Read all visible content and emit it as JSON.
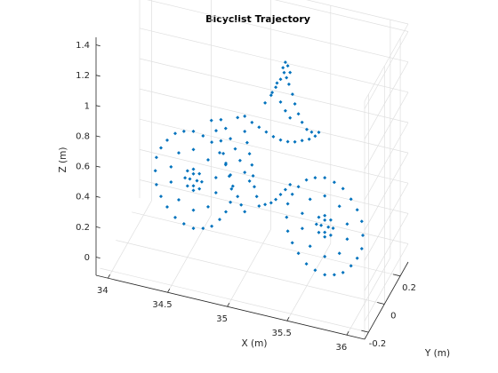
{
  "chart_data": {
    "type": "scatter",
    "title": "Bicyclist Trajectory",
    "xlabel": "X (m)",
    "ylabel": "Y (m)",
    "zlabel": "Z (m)",
    "xlim": [
      33.9,
      36.15
    ],
    "ylim": [
      -0.25,
      0.3
    ],
    "zlim": [
      -0.12,
      1.45
    ],
    "xticks": [
      "34",
      "34.5",
      "35",
      "35.5",
      "36"
    ],
    "yticks": [
      "-0.2",
      "0",
      "0.2"
    ],
    "zticks": [
      "0",
      "0.2",
      "0.4",
      "0.6",
      "0.8",
      "1",
      "1.2",
      "1.4"
    ],
    "grid": true,
    "marker_color": "#0072BD",
    "series": [
      {
        "points": [
          [
            34.55,
            0,
            0.72
          ],
          [
            34.703,
            0,
            0.677
          ],
          [
            34.822,
            0,
            0.56
          ],
          [
            34.869,
            0,
            0.4
          ],
          [
            34.822,
            0,
            0.24
          ],
          [
            34.703,
            0,
            0.123
          ],
          [
            34.55,
            0,
            0.08
          ],
          [
            34.397,
            0,
            0.123
          ],
          [
            34.278,
            0,
            0.24
          ],
          [
            34.231,
            0,
            0.4
          ],
          [
            34.278,
            0,
            0.56
          ],
          [
            34.397,
            0,
            0.677
          ],
          [
            34.63,
            0,
            0.705
          ],
          [
            34.77,
            0,
            0.62
          ],
          [
            34.86,
            0,
            0.49
          ],
          [
            34.86,
            0,
            0.31
          ],
          [
            34.77,
            0,
            0.18
          ],
          [
            34.63,
            0,
            0.095
          ],
          [
            34.47,
            0,
            0.095
          ],
          [
            34.33,
            0,
            0.18
          ],
          [
            34.24,
            0,
            0.31
          ],
          [
            34.24,
            0,
            0.49
          ],
          [
            34.33,
            0,
            0.62
          ],
          [
            34.47,
            0,
            0.705
          ],
          [
            34.55,
            0,
            0.6
          ],
          [
            34.673,
            0,
            0.555
          ],
          [
            34.738,
            0,
            0.45
          ],
          [
            34.738,
            0,
            0.35
          ],
          [
            34.673,
            0,
            0.245
          ],
          [
            34.55,
            0,
            0.2
          ],
          [
            34.427,
            0,
            0.245
          ],
          [
            34.362,
            0,
            0.35
          ],
          [
            34.362,
            0,
            0.45
          ],
          [
            34.427,
            0,
            0.555
          ],
          [
            34.55,
            0,
            0.47
          ],
          [
            34.6,
            0,
            0.45
          ],
          [
            34.62,
            0,
            0.4
          ],
          [
            34.6,
            0,
            0.35
          ],
          [
            34.55,
            0,
            0.33
          ],
          [
            34.5,
            0,
            0.35
          ],
          [
            34.48,
            0,
            0.4
          ],
          [
            34.5,
            0,
            0.45
          ],
          [
            34.55,
            0,
            0.44
          ],
          [
            34.58,
            0,
            0.4
          ],
          [
            34.55,
            0,
            0.36
          ],
          [
            34.52,
            0,
            0.4
          ],
          [
            35.65,
            0,
            0.62
          ],
          [
            35.803,
            0,
            0.577
          ],
          [
            35.922,
            0,
            0.46
          ],
          [
            35.969,
            0,
            0.3
          ],
          [
            35.922,
            0,
            0.14
          ],
          [
            35.803,
            0,
            0.023
          ],
          [
            35.65,
            0,
            -0.02
          ],
          [
            35.497,
            0,
            0.023
          ],
          [
            35.378,
            0,
            0.14
          ],
          [
            35.331,
            0,
            0.3
          ],
          [
            35.378,
            0,
            0.46
          ],
          [
            35.497,
            0,
            0.577
          ],
          [
            35.73,
            0,
            0.605
          ],
          [
            35.87,
            0,
            0.52
          ],
          [
            35.96,
            0,
            0.39
          ],
          [
            35.96,
            0,
            0.21
          ],
          [
            35.87,
            0,
            0.08
          ],
          [
            35.73,
            0,
            -0.005
          ],
          [
            35.57,
            0,
            -0.005
          ],
          [
            35.43,
            0,
            0.08
          ],
          [
            35.34,
            0,
            0.21
          ],
          [
            35.34,
            0,
            0.39
          ],
          [
            35.43,
            0,
            0.52
          ],
          [
            35.57,
            0,
            0.605
          ],
          [
            35.65,
            0,
            0.5
          ],
          [
            35.773,
            0,
            0.455
          ],
          [
            35.838,
            0,
            0.35
          ],
          [
            35.838,
            0,
            0.25
          ],
          [
            35.773,
            0,
            0.145
          ],
          [
            35.65,
            0,
            0.1
          ],
          [
            35.527,
            0,
            0.145
          ],
          [
            35.462,
            0,
            0.25
          ],
          [
            35.462,
            0,
            0.35
          ],
          [
            35.527,
            0,
            0.455
          ],
          [
            35.65,
            0,
            0.37
          ],
          [
            35.7,
            0,
            0.35
          ],
          [
            35.72,
            0,
            0.3
          ],
          [
            35.7,
            0,
            0.25
          ],
          [
            35.65,
            0,
            0.23
          ],
          [
            35.6,
            0,
            0.25
          ],
          [
            35.58,
            0,
            0.3
          ],
          [
            35.6,
            0,
            0.35
          ],
          [
            35.65,
            0,
            0.34
          ],
          [
            35.68,
            0,
            0.3
          ],
          [
            35.65,
            0,
            0.26
          ],
          [
            35.62,
            0,
            0.3
          ],
          [
            34.7,
            0,
            0.82
          ],
          [
            34.74,
            0,
            0.76
          ],
          [
            34.78,
            0,
            0.7
          ],
          [
            34.8,
            0,
            0.62
          ],
          [
            34.82,
            0,
            0.55
          ],
          [
            34.85,
            0,
            0.48
          ],
          [
            34.88,
            0,
            0.42
          ],
          [
            34.92,
            0,
            0.36
          ],
          [
            34.95,
            0,
            0.31
          ],
          [
            34.98,
            0,
            0.27
          ],
          [
            34.78,
            0,
            0.84
          ],
          [
            34.82,
            0,
            0.79
          ],
          [
            34.86,
            0,
            0.73
          ],
          [
            34.9,
            0,
            0.67
          ],
          [
            34.94,
            0,
            0.6
          ],
          [
            34.98,
            0,
            0.53
          ],
          [
            35.02,
            0,
            0.48
          ],
          [
            34.98,
            0,
            0.8
          ],
          [
            35.0,
            0,
            0.73
          ],
          [
            35.02,
            0,
            0.66
          ],
          [
            35.04,
            0,
            0.59
          ],
          [
            35.05,
            0,
            0.52
          ],
          [
            35.06,
            0,
            0.45
          ],
          [
            35.08,
            0,
            0.39
          ],
          [
            35.1,
            0,
            0.33
          ],
          [
            35.15,
            0,
            0.35
          ],
          [
            35.2,
            0,
            0.37
          ],
          [
            35.24,
            0,
            0.4
          ],
          [
            35.28,
            0,
            0.44
          ],
          [
            35.32,
            0,
            0.48
          ],
          [
            35.36,
            0,
            0.52
          ],
          [
            34.92,
            0,
            0.88
          ],
          [
            34.98,
            0,
            0.9
          ],
          [
            35.04,
            0,
            0.87
          ],
          [
            35.1,
            0,
            0.85
          ],
          [
            35.16,
            0,
            0.83
          ],
          [
            35.22,
            0,
            0.81
          ],
          [
            35.28,
            0,
            0.8
          ],
          [
            35.34,
            0,
            0.8
          ],
          [
            35.4,
            0,
            0.81
          ],
          [
            35.46,
            0,
            0.83
          ],
          [
            35.52,
            0,
            0.85
          ],
          [
            35.57,
            0,
            0.88
          ],
          [
            35.6,
            0,
            0.91
          ],
          [
            35.15,
            0,
            1.02
          ],
          [
            35.2,
            0,
            1.08
          ],
          [
            35.24,
            0,
            1.14
          ],
          [
            35.28,
            0,
            1.2
          ],
          [
            35.31,
            0,
            1.25
          ],
          [
            35.21,
            0,
            1.1
          ],
          [
            35.25,
            0,
            1.17
          ],
          [
            35.3,
            0,
            1.28
          ],
          [
            35.32,
            0,
            1.32
          ],
          [
            35.34,
            0,
            1.3
          ],
          [
            35.36,
            0,
            1.26
          ],
          [
            35.33,
            0,
            1.22
          ],
          [
            35.35,
            0,
            1.18
          ],
          [
            35.38,
            0,
            1.12
          ],
          [
            35.28,
            0,
            1.05
          ],
          [
            35.32,
            0,
            1.0
          ],
          [
            35.36,
            0,
            0.96
          ],
          [
            35.4,
            0,
            1.06
          ],
          [
            35.43,
            0,
            1.0
          ],
          [
            35.46,
            0,
            0.95
          ],
          [
            35.5,
            0,
            0.91
          ],
          [
            35.54,
            0,
            0.9
          ]
        ]
      }
    ]
  }
}
